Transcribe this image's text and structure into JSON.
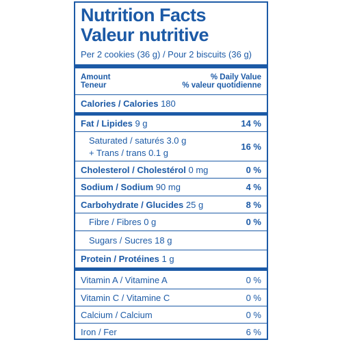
{
  "header": {
    "title": "Nutrition Facts",
    "title_fr": "Valeur nutritive",
    "serving": "Per 2 cookies (36 g) / Pour 2 biscuits (36 g)"
  },
  "columns": {
    "amount": "Amount",
    "amount_fr": "Teneur",
    "dv": "% Daily Value",
    "dv_fr": "% valeur quotidienne"
  },
  "calories": {
    "label": "Calories / Calories",
    "amount": "180"
  },
  "nutrients": [
    {
      "label": "Fat / Lipides",
      "amount": "9 g",
      "dv": "14 %"
    },
    {
      "label": "Saturated / saturés",
      "amount": "3.0 g",
      "label2": "+ Trans / trans",
      "amount2": "0.1 g",
      "dv": "16 %"
    },
    {
      "label": "Cholesterol / Cholestérol",
      "amount": "0 mg",
      "dv": "0 %"
    },
    {
      "label": "Sodium / Sodium",
      "amount": "90 mg",
      "dv": "4 %"
    },
    {
      "label": "Carbohydrate / Glucides",
      "amount": "25 g",
      "dv": "8 %"
    },
    {
      "label": "Fibre / Fibres",
      "amount": "0 g",
      "dv": "0 %"
    },
    {
      "label": "Sugars / Sucres",
      "amount": "18 g"
    },
    {
      "label": "Protein / Protéines",
      "amount": "1 g"
    }
  ],
  "vitamins": [
    {
      "label": "Vitamin A / Vitamine A",
      "dv": "0 %"
    },
    {
      "label": "Vitamin C / Vitamine C",
      "dv": "0 %"
    },
    {
      "label": "Calcium / Calcium",
      "dv": "0 %"
    },
    {
      "label": "Iron / Fer",
      "dv": "6 %"
    }
  ]
}
